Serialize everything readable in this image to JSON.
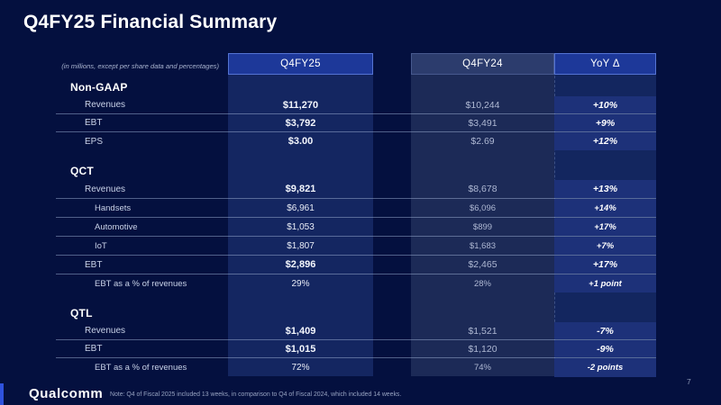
{
  "slide": {
    "title": "Q4FY25 Financial Summary",
    "units_note": "(in millions, except per share data and percentages)",
    "footnote": "Note: Q4 of Fiscal 2025 included 13 weeks, in comparison to Q4 of Fiscal 2024, which included 14 weeks.",
    "page_number": "7",
    "logo_text": "Qualcomm"
  },
  "colors": {
    "background": "#04103f",
    "column_band_fy25": "#142661",
    "column_band_fy24": "#1c2a57",
    "column_band_yoy": "#13265f",
    "yoy_row_highlight": "#1d3179",
    "header_blue_fill": "#1d3899",
    "header_blue_border": "#5473d3",
    "header_slate_fill": "#2c3c6d",
    "accent_bar": "#2f52dd",
    "text_primary": "#ffffff",
    "text_muted": "#aeb8d3"
  },
  "table": {
    "columns": {
      "fy25": "Q4FY25",
      "fy24": "Q4FY24",
      "yoy": "YoY Δ"
    },
    "sections": [
      {
        "name": "Non-GAAP",
        "rows": [
          {
            "label": "Revenues",
            "fy25": "$11,270",
            "fy24": "$10,244",
            "yoy": "+10%"
          },
          {
            "label": "EBT",
            "fy25": "$3,792",
            "fy24": "$3,491",
            "yoy": "+9%"
          },
          {
            "label": "EPS",
            "fy25": "$3.00",
            "fy24": "$2.69",
            "yoy": "+12%"
          }
        ]
      },
      {
        "name": "QCT",
        "rows": [
          {
            "label": "Revenues",
            "fy25": "$9,821",
            "fy24": "$8,678",
            "yoy": "+13%"
          },
          {
            "label": "Handsets",
            "fy25": "$6,961",
            "fy24": "$6,096",
            "yoy": "+14%"
          },
          {
            "label": "Automotive",
            "fy25": "$1,053",
            "fy24": "$899",
            "yoy": "+17%"
          },
          {
            "label": "IoT",
            "fy25": "$1,807",
            "fy24": "$1,683",
            "yoy": "+7%"
          },
          {
            "label": "EBT",
            "fy25": "$2,896",
            "fy24": "$2,465",
            "yoy": "+17%"
          },
          {
            "label": "EBT as a % of revenues",
            "fy25": "29%",
            "fy24": "28%",
            "yoy": "+1 point"
          }
        ]
      },
      {
        "name": "QTL",
        "rows": [
          {
            "label": "Revenues",
            "fy25": "$1,409",
            "fy24": "$1,521",
            "yoy": "-7%"
          },
          {
            "label": "EBT",
            "fy25": "$1,015",
            "fy24": "$1,120",
            "yoy": "-9%"
          },
          {
            "label": "EBT as a % of revenues",
            "fy25": "72%",
            "fy24": "74%",
            "yoy": "-2 points"
          }
        ]
      }
    ]
  }
}
